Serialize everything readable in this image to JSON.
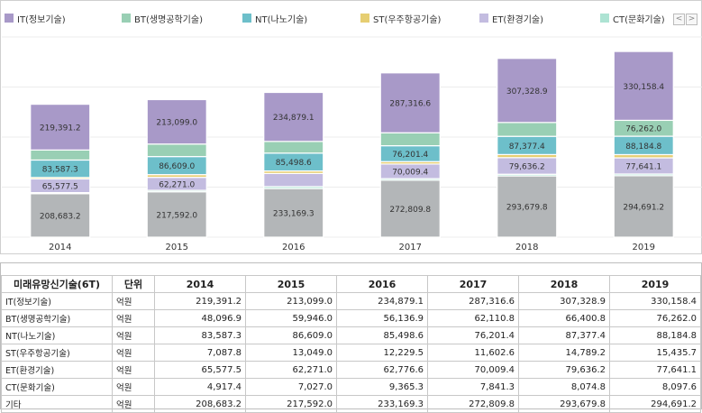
{
  "chart_data": {
    "type": "bar",
    "stacked": true,
    "categories": [
      "2014",
      "2015",
      "2016",
      "2017",
      "2018",
      "2019"
    ],
    "series": [
      {
        "name": "기타",
        "color": "#b3b6b8",
        "values": [
          208683.2,
          217592.0,
          233169.3,
          272809.8,
          293679.8,
          294691.2
        ]
      },
      {
        "name": "CT(문화기술)",
        "color": "#ade3d3",
        "values": [
          4917.4,
          7027.0,
          9365.3,
          7841.3,
          8074.8,
          8097.6
        ]
      },
      {
        "name": "ET(환경기술)",
        "color": "#c3bce0",
        "values": [
          65577.5,
          62271.0,
          62776.6,
          70009.4,
          79636.2,
          77641.1
        ]
      },
      {
        "name": "ST(우주항공기술)",
        "color": "#e6ce72",
        "values": [
          7087.8,
          13049.0,
          12229.5,
          11602.6,
          14789.2,
          15435.7
        ]
      },
      {
        "name": "NT(나노기술)",
        "color": "#6dbfca",
        "values": [
          83587.3,
          86609.0,
          85498.6,
          76201.4,
          87377.4,
          88184.8
        ]
      },
      {
        "name": "BT(생명공학기술)",
        "color": "#99cfb4",
        "values": [
          48096.9,
          59946.0,
          56136.9,
          62110.8,
          66400.8,
          76262.0
        ]
      },
      {
        "name": "IT(정보기술)",
        "color": "#a899c8",
        "values": [
          219391.2,
          213099.0,
          234879.1,
          287316.6,
          307328.9,
          330158.4
        ]
      }
    ],
    "data_labels": {
      "IT(정보기술)": [
        "219,391.2",
        "213,099.0",
        "234,879.1",
        "287,316.6",
        "307,328.9",
        "330,158.4"
      ],
      "BT(생명공학기술)": [
        "",
        "",
        "",
        "",
        "",
        "76,262.0"
      ],
      "NT(나노기술)": [
        "83,587.3",
        "86,609.0",
        "85,498.6",
        "76,201.4",
        "87,377.4",
        "88,184.8"
      ],
      "ET(환경기술)": [
        "65,577.5",
        "62,271.0",
        "",
        "70,009.4",
        "79,636.2",
        "77,641.1"
      ],
      "기타": [
        "208,683.2",
        "217,592.0",
        "233,169.3",
        "272,809.8",
        "293,679.8",
        "294,691.2"
      ]
    },
    "ylim": [
      0,
      960000
    ],
    "grid": true,
    "legend_position": "top"
  },
  "legend": [
    {
      "label": "IT(정보기술)",
      "color": "#a899c8"
    },
    {
      "label": "BT(생명공학기술)",
      "color": "#99cfb4"
    },
    {
      "label": "NT(나노기술)",
      "color": "#6dbfca"
    },
    {
      "label": "ST(우주항공기술)",
      "color": "#e6ce72"
    },
    {
      "label": "ET(환경기술)",
      "color": "#c3bce0"
    },
    {
      "label": "CT(문화기술)",
      "color": "#ade3d3"
    }
  ],
  "legend_nav": {
    "prev": "<",
    "next": ">"
  },
  "table": {
    "header_name": "미래유망신기술(6T)",
    "header_unit": "단위",
    "years": [
      "2014",
      "2015",
      "2016",
      "2017",
      "2018",
      "2019"
    ],
    "rows": [
      {
        "name": "IT(정보기술)",
        "unit": "억원",
        "values": [
          "219,391.2",
          "213,099.0",
          "234,879.1",
          "287,316.6",
          "307,328.9",
          "330,158.4"
        ]
      },
      {
        "name": "BT(생명공학기술)",
        "unit": "억원",
        "values": [
          "48,096.9",
          "59,946.0",
          "56,136.9",
          "62,110.8",
          "66,400.8",
          "76,262.0"
        ]
      },
      {
        "name": "NT(나노기술)",
        "unit": "억원",
        "values": [
          "83,587.3",
          "86,609.0",
          "85,498.6",
          "76,201.4",
          "87,377.4",
          "88,184.8"
        ]
      },
      {
        "name": "ST(우주항공기술)",
        "unit": "억원",
        "values": [
          "7,087.8",
          "13,049.0",
          "12,229.5",
          "11,602.6",
          "14,789.2",
          "15,435.7"
        ]
      },
      {
        "name": "ET(환경기술)",
        "unit": "억원",
        "values": [
          "65,577.5",
          "62,271.0",
          "62,776.6",
          "70,009.4",
          "79,636.2",
          "77,641.1"
        ]
      },
      {
        "name": "CT(문화기술)",
        "unit": "억원",
        "values": [
          "4,917.4",
          "7,027.0",
          "9,365.3",
          "7,841.3",
          "8,074.8",
          "8,097.6"
        ]
      },
      {
        "name": "기타",
        "unit": "억원",
        "values": [
          "208,683.2",
          "217,592.0",
          "233,169.3",
          "272,809.8",
          "293,679.8",
          "294,691.2"
        ]
      }
    ]
  }
}
